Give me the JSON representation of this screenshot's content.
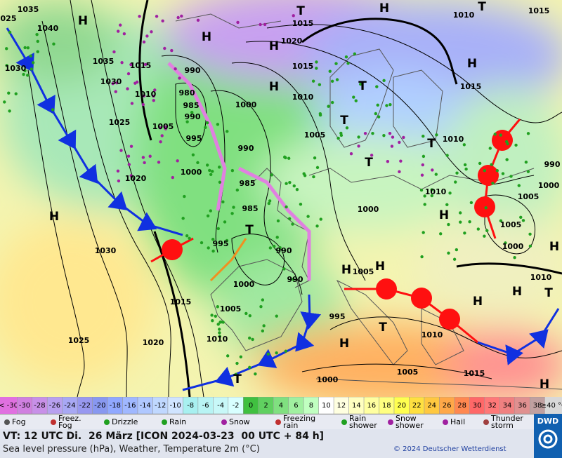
{
  "map": {
    "pressure_labels": [
      "1035",
      "025",
      "1040",
      "1030",
      "1035",
      "1030",
      "1025",
      "1020",
      "1030",
      "1025",
      "1020",
      "1015",
      "1015",
      "1010",
      "1005",
      "1000",
      "990",
      "980",
      "985",
      "990",
      "995",
      "1000",
      "990",
      "985",
      "985",
      "995",
      "990",
      "990",
      "1000",
      "1005",
      "1010",
      "995",
      "1005",
      "1000",
      "1010",
      "1005",
      "1000",
      "1005",
      "1000",
      "1010",
      "1010",
      "1005",
      "1000",
      "1015",
      "1010",
      "1005",
      "1010",
      "1015",
      "1020",
      "1015",
      "1010",
      "1015",
      "1015",
      "990"
    ],
    "pressure_systems": [
      "H",
      "H",
      "H",
      "H",
      "H",
      "H",
      "H",
      "H",
      "H",
      "H",
      "H",
      "H",
      "H",
      "H",
      "H",
      "T",
      "T",
      "T",
      "T",
      "T",
      "T",
      "T",
      "T",
      "T",
      "T"
    ]
  },
  "temperature_scale": {
    "below": "< -30",
    "below_color": "#e070e0",
    "values": [
      -30,
      -28,
      -26,
      -24,
      -22,
      -20,
      -18,
      -16,
      -14,
      -12,
      -10,
      -8,
      -6,
      -4,
      -2,
      0,
      2,
      4,
      6,
      8,
      10,
      12,
      14,
      16,
      18,
      20,
      22,
      24,
      26,
      28,
      30,
      32,
      34,
      36,
      38
    ],
    "colors": [
      "#d080e0",
      "#c890e8",
      "#b8a0f0",
      "#a8a8f4",
      "#9898f0",
      "#8898f0",
      "#90a8ff",
      "#a0b8ff",
      "#b0c8ff",
      "#c0d8ff",
      "#d0e4ff",
      "#a8f0f0",
      "#b8f4f4",
      "#c8f8f8",
      "#d8ffff",
      "#40c040",
      "#60d060",
      "#80e080",
      "#a0f0a0",
      "#c0ffc0",
      "#ffffff",
      "#ffffe0",
      "#ffffc0",
      "#ffffa0",
      "#ffff80",
      "#ffff50",
      "#ffe040",
      "#ffc840",
      "#ffa848",
      "#ff8850",
      "#ff6868",
      "#ff7878",
      "#f08080",
      "#e09090",
      "#c0a0a0"
    ],
    "above": "≥40 °C",
    "above_color": "#d8d8d8"
  },
  "legend": [
    "Fog",
    "Freez. Fog",
    "Drizzle",
    "Rain",
    "Snow",
    "Freezing rain",
    "Rain shower",
    "Snow shower",
    "Hail",
    "Thunder storm"
  ],
  "footer": {
    "valid_time": "VT: 12 UTC Di.  26 März [ICON 2024-03-23  00 UTC + 84 h]",
    "description": "Sea level pressure (hPa), Weather, Temperature 2m (°C)",
    "copyright": "© 2024 Deutscher Wetterdienst",
    "logo": "DWD"
  }
}
